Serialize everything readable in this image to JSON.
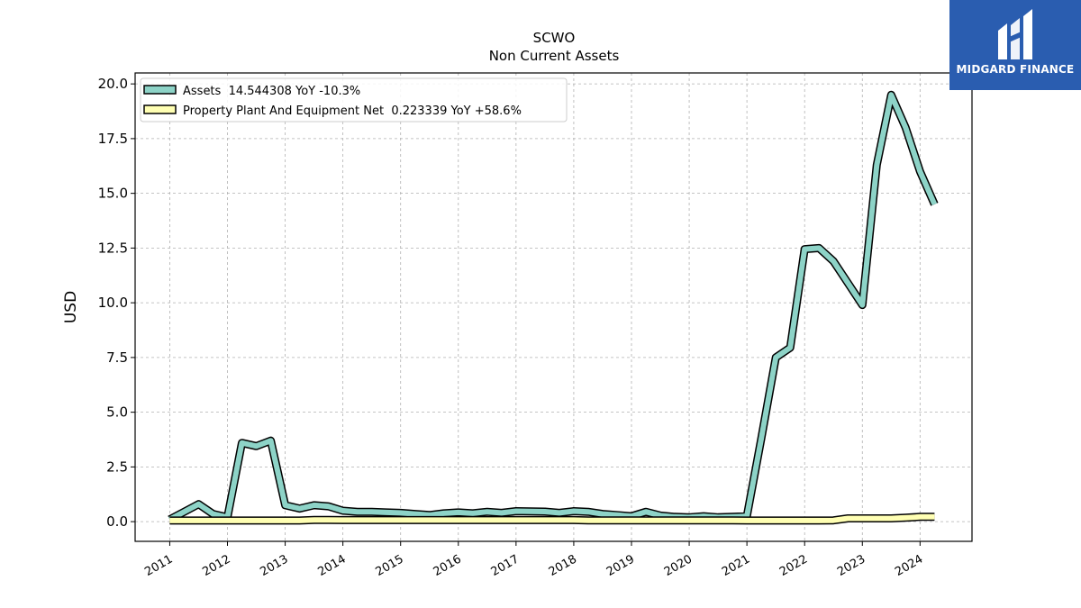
{
  "chart_data": {
    "type": "line",
    "title": "SCWO",
    "subtitle": "Non Current  Assets",
    "ylabel": "USD",
    "ylim": [
      -0.9,
      20.5
    ],
    "xlim": [
      2010.4,
      2024.9
    ],
    "yticks": [
      "0.0",
      "2.5",
      "5.0",
      "7.5",
      "10.0",
      "12.5",
      "15.0",
      "17.5",
      "20.0"
    ],
    "xticks": [
      "2011",
      "2012",
      "2013",
      "2014",
      "2015",
      "2016",
      "2017",
      "2018",
      "2019",
      "2020",
      "2021",
      "2022",
      "2023",
      "2024"
    ],
    "grid": true,
    "legend_position": "top-left",
    "series": [
      {
        "name": "Assets  14.544308 YoY -10.3%",
        "color": "#8dd3c7",
        "x": [
          2011.0,
          2011.25,
          2011.5,
          2011.75,
          2012.0,
          2012.25,
          2012.5,
          2012.75,
          2013.0,
          2013.25,
          2013.5,
          2013.75,
          2014.0,
          2014.25,
          2014.5,
          2014.75,
          2015.0,
          2015.25,
          2015.5,
          2015.75,
          2016.0,
          2016.25,
          2016.5,
          2016.75,
          2017.0,
          2017.25,
          2017.5,
          2017.75,
          2018.0,
          2018.25,
          2018.5,
          2018.75,
          2019.0,
          2019.25,
          2019.5,
          2019.75,
          2020.0,
          2020.25,
          2020.5,
          2020.75,
          2021.0,
          2021.25,
          2021.5,
          2021.75,
          2022.0,
          2022.25,
          2022.5,
          2022.75,
          2023.0,
          2023.25,
          2023.5,
          2023.75,
          2024.0,
          2024.25
        ],
        "values": [
          0.1,
          0.45,
          0.8,
          0.35,
          0.2,
          3.6,
          3.45,
          3.7,
          0.75,
          0.6,
          0.75,
          0.7,
          0.5,
          0.45,
          0.45,
          0.42,
          0.4,
          0.35,
          0.3,
          0.38,
          0.42,
          0.38,
          0.45,
          0.4,
          0.48,
          0.47,
          0.46,
          0.4,
          0.48,
          0.45,
          0.35,
          0.3,
          0.25,
          0.45,
          0.28,
          0.22,
          0.2,
          0.25,
          0.2,
          0.22,
          0.25,
          3.8,
          7.5,
          7.95,
          12.45,
          12.5,
          11.9,
          10.9,
          9.9,
          16.3,
          19.5,
          18.0,
          16.0,
          14.5
        ]
      },
      {
        "name": "Property Plant And Equipment Net  0.223339 YoY +58.6%",
        "color": "#ffffb3",
        "x": [
          2011.0,
          2011.25,
          2011.5,
          2011.75,
          2012.0,
          2012.25,
          2012.5,
          2012.75,
          2013.0,
          2013.25,
          2013.5,
          2013.75,
          2014.0,
          2014.25,
          2014.5,
          2014.75,
          2015.0,
          2015.25,
          2015.5,
          2015.75,
          2016.0,
          2016.25,
          2016.5,
          2016.75,
          2017.0,
          2017.25,
          2017.5,
          2017.75,
          2018.0,
          2018.25,
          2018.5,
          2018.75,
          2019.0,
          2019.25,
          2019.5,
          2019.75,
          2020.0,
          2020.25,
          2020.5,
          2020.75,
          2021.0,
          2021.25,
          2021.5,
          2021.75,
          2022.0,
          2022.25,
          2022.5,
          2022.75,
          2023.0,
          2023.25,
          2023.5,
          2023.75,
          2024.0,
          2024.25
        ],
        "values": [
          0.05,
          0.05,
          0.05,
          0.05,
          0.05,
          0.05,
          0.05,
          0.05,
          0.05,
          0.05,
          0.08,
          0.08,
          0.07,
          0.07,
          0.07,
          0.07,
          0.07,
          0.07,
          0.07,
          0.07,
          0.07,
          0.07,
          0.07,
          0.07,
          0.07,
          0.07,
          0.07,
          0.07,
          0.07,
          0.06,
          0.06,
          0.06,
          0.06,
          0.06,
          0.06,
          0.06,
          0.06,
          0.06,
          0.06,
          0.06,
          0.05,
          0.05,
          0.05,
          0.05,
          0.05,
          0.05,
          0.06,
          0.15,
          0.15,
          0.15,
          0.15,
          0.18,
          0.22,
          0.22
        ]
      }
    ]
  },
  "logo": {
    "text": "MIDGARD FINANCE",
    "background": "#2a5db0"
  }
}
